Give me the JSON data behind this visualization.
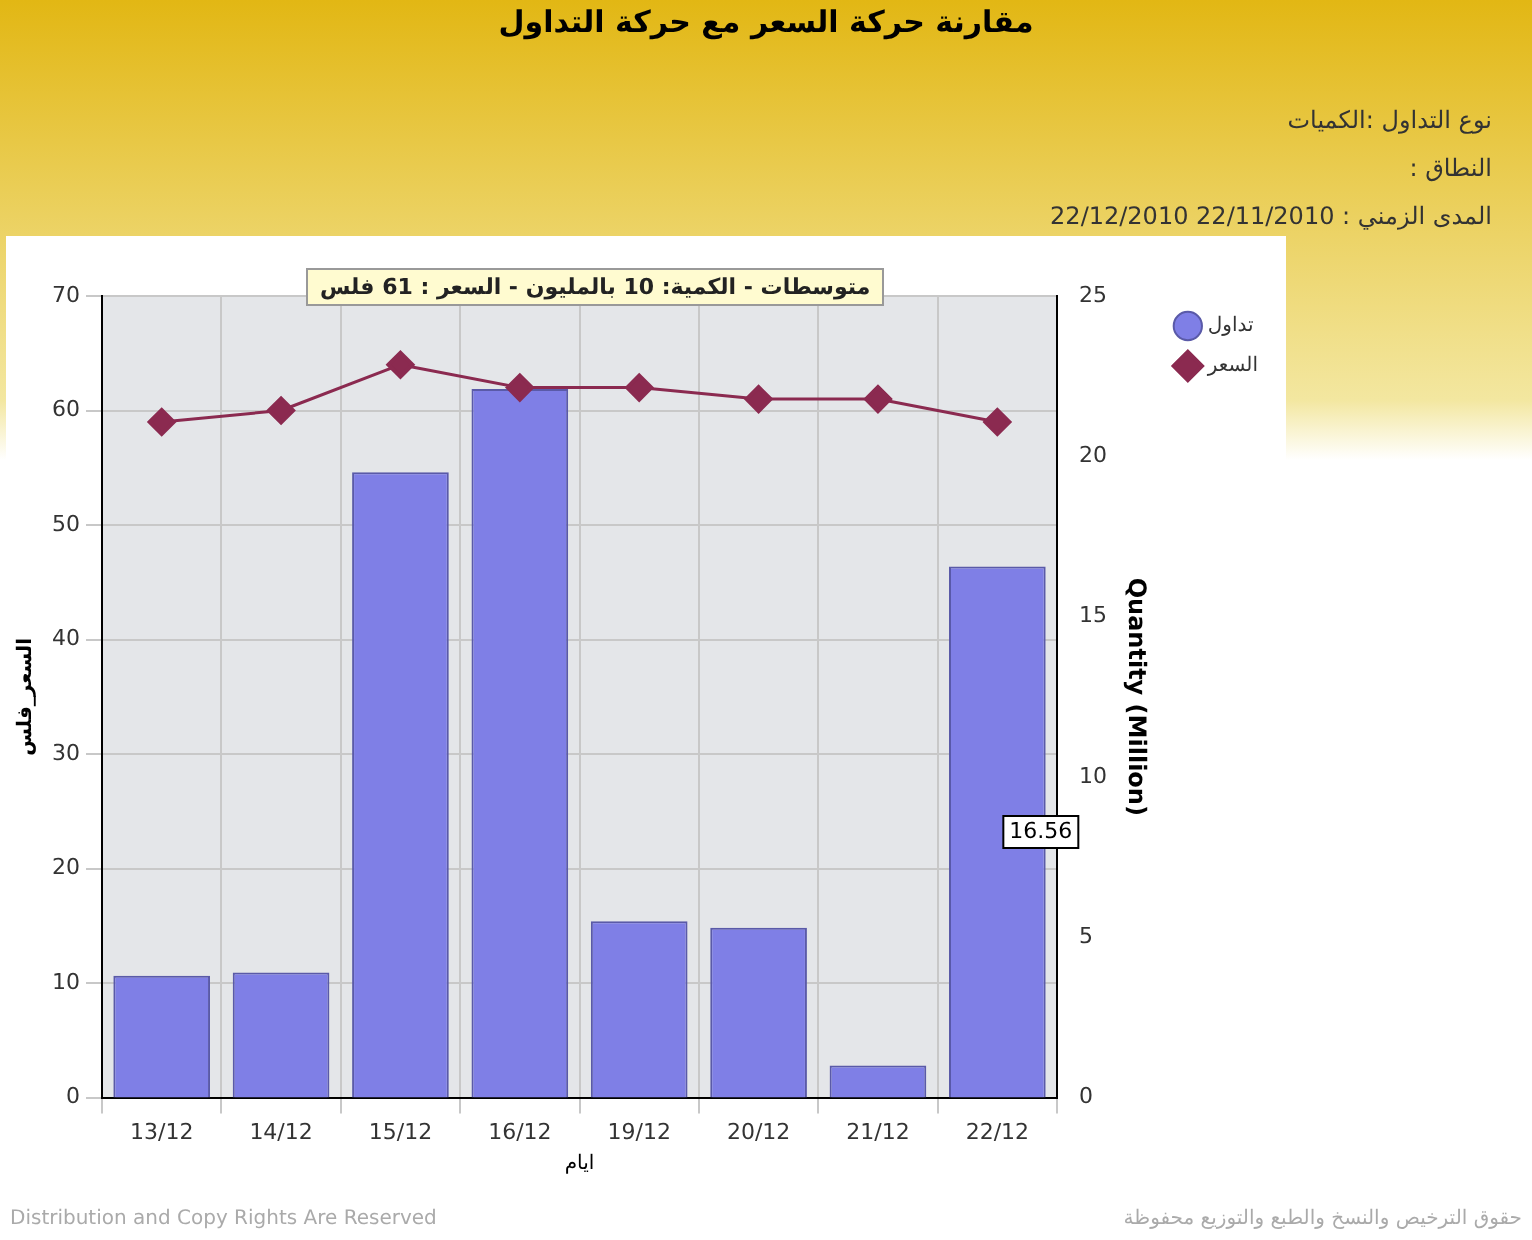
{
  "chart_data": {
    "type": "bar",
    "title": "مقارنة حركة السعر مع حركة التداول",
    "subtitle": "نوع التداول :الكميات",
    "annotations": [
      "النطاق :",
      "المدى الزمني :  22/11/2010 22/12/2010",
      "متوسطات - الكمية: 10 بالمليون  - السعر : 61 فلس",
      "Distribution and Copy Rights Are Reserved",
      "حقوق الترخيص والنسخ والطبع والتوزيع محفوظة"
    ],
    "xlabel": "ايام",
    "ylabel": "السعر_فلس",
    "y2label": "Quantity (Million)",
    "categories": [
      "13/12",
      "14/12",
      "15/12",
      "16/12",
      "19/12",
      "20/12",
      "21/12",
      "22/12"
    ],
    "series": [
      {
        "name": "تداول",
        "axis": "y2",
        "color": "#7f7fe6",
        "values": [
          3.8,
          3.9,
          19.5,
          22.1,
          5.5,
          5.3,
          1.0,
          16.56
        ],
        "value_labels": [
          null,
          null,
          null,
          null,
          null,
          null,
          null,
          "16.56"
        ]
      },
      {
        "name": "السعر",
        "type": "line",
        "axis": "y",
        "color": "#8b2a50",
        "values": [
          59,
          60,
          64,
          62,
          62,
          61,
          61,
          59
        ]
      }
    ],
    "ylim": [
      0,
      70
    ],
    "yticks": [
      0,
      10,
      20,
      30,
      40,
      50,
      60,
      70
    ],
    "y2lim": [
      0,
      25
    ],
    "y2ticks": [
      0,
      5,
      10,
      15,
      20,
      25
    ],
    "grid": true,
    "legend": "top right",
    "marker": "diamond",
    "line_style": "solid"
  }
}
